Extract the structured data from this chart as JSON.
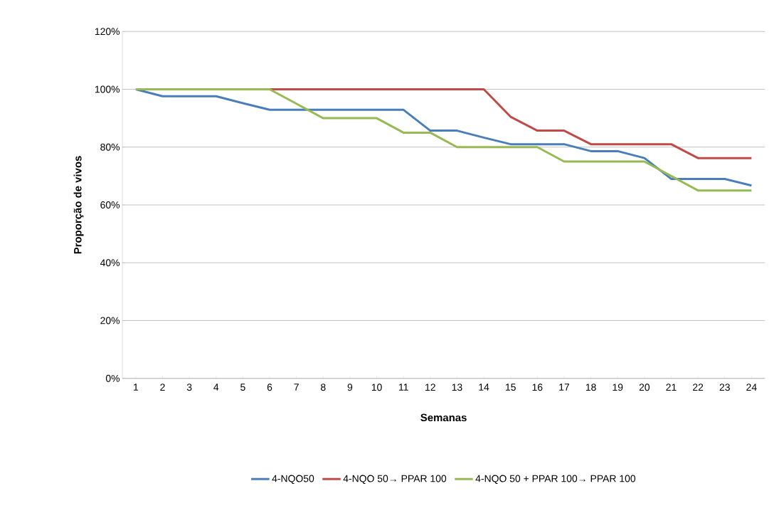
{
  "chart_data": {
    "type": "line",
    "xlabel": "Semanas",
    "ylabel": "Proporção de vivos",
    "categories": [
      "1",
      "2",
      "3",
      "4",
      "5",
      "6",
      "7",
      "8",
      "9",
      "10",
      "11",
      "12",
      "13",
      "14",
      "15",
      "16",
      "17",
      "18",
      "19",
      "20",
      "21",
      "22",
      "23",
      "24"
    ],
    "series": [
      {
        "name": "4-NQO50",
        "color": "#4a7ebb",
        "values": [
          100,
          97.6,
          97.6,
          97.6,
          95.2,
          92.9,
          92.9,
          92.9,
          92.9,
          92.9,
          92.9,
          85.7,
          85.7,
          83.3,
          81,
          81,
          81,
          78.6,
          78.6,
          76.2,
          69,
          69,
          69,
          66.7
        ]
      },
      {
        "name": "4-NQO 50→ PPAR 100",
        "color": "#be4b48",
        "values": [
          null,
          null,
          null,
          null,
          null,
          100,
          100,
          100,
          100,
          100,
          100,
          100,
          100,
          100,
          90.5,
          85.7,
          85.7,
          81,
          81,
          81,
          81,
          76.2,
          76.2,
          76.2
        ]
      },
      {
        "name": "4-NQO 50 + PPAR 100→ PPAR 100",
        "color": "#98b954",
        "values": [
          100,
          100,
          100,
          100,
          100,
          100,
          95,
          90,
          90,
          90,
          85,
          85,
          80,
          80,
          80,
          80,
          75,
          75,
          75,
          75,
          70,
          65,
          65,
          65
        ]
      }
    ],
    "ylim": [
      0,
      120
    ],
    "yticks": [
      {
        "value": 0,
        "label": "0%"
      },
      {
        "value": 20,
        "label": "20%"
      },
      {
        "value": 40,
        "label": "40%"
      },
      {
        "value": 60,
        "label": "60%"
      },
      {
        "value": 80,
        "label": "80%"
      },
      {
        "value": 100,
        "label": "100%"
      },
      {
        "value": 120,
        "label": "120%"
      }
    ],
    "grid": "y",
    "legend": "bottom",
    "marker": "none",
    "line_style": "solid"
  }
}
